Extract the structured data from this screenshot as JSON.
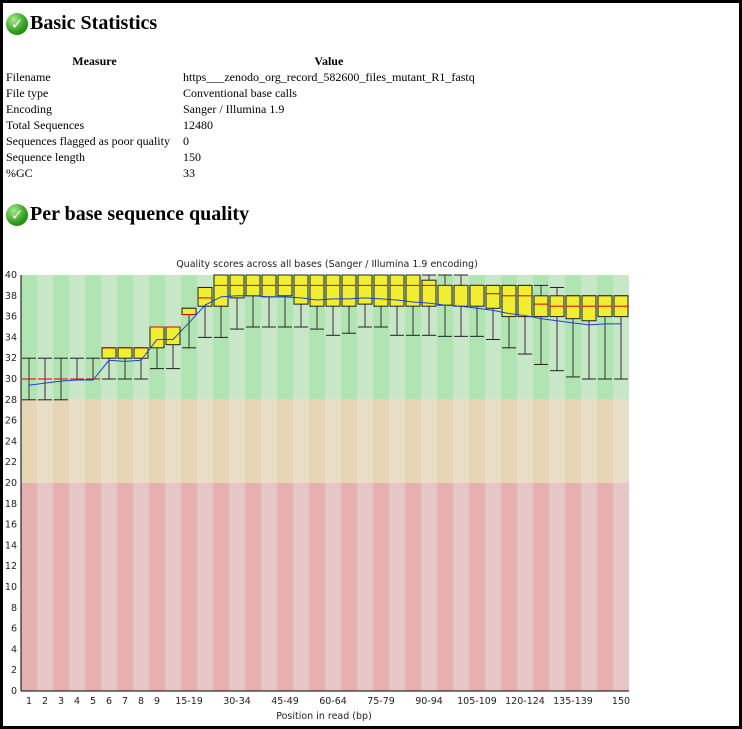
{
  "basic_statistics": {
    "title": "Basic Statistics",
    "headers": [
      "Measure",
      "Value"
    ],
    "rows": [
      [
        "Filename",
        "https___zenodo_org_record_582600_files_mutant_R1_fastq"
      ],
      [
        "File type",
        "Conventional base calls"
      ],
      [
        "Encoding",
        "Sanger / Illumina 1.9"
      ],
      [
        "Total Sequences",
        "12480"
      ],
      [
        "Sequences flagged as poor quality",
        "0"
      ],
      [
        "Sequence length",
        "150"
      ],
      [
        "%GC",
        "33"
      ]
    ]
  },
  "per_base_quality": {
    "title": "Per base sequence quality"
  },
  "icons": {
    "status": "check-circle-icon"
  },
  "colors": {
    "box": "#f0ee30",
    "median": "#e00000",
    "mean": "#2040d0",
    "good": [
      "#b0e4b0",
      "#c8e6c8"
    ],
    "warn": [
      "#e6d6b4",
      "#e8ddc6"
    ],
    "bad": [
      "#e6b0b0",
      "#e6c6c6"
    ]
  },
  "chart_data": {
    "type": "box",
    "title": "Quality scores across all bases (Sanger / Illumina 1.9 encoding)",
    "xlabel": "Position in read (bp)",
    "ylabel": "",
    "ylim": [
      0,
      40
    ],
    "yticks": [
      0,
      2,
      4,
      6,
      8,
      10,
      12,
      14,
      16,
      18,
      20,
      22,
      24,
      26,
      28,
      30,
      32,
      34,
      36,
      38,
      40
    ],
    "categories": [
      "1",
      "2",
      "3",
      "4",
      "5",
      "6",
      "7",
      "8",
      "9",
      "10-14",
      "15-19",
      "20-24",
      "25-29",
      "30-34",
      "35-39",
      "40-44",
      "45-49",
      "50-54",
      "55-59",
      "60-64",
      "65-69",
      "70-74",
      "75-79",
      "80-84",
      "85-89",
      "90-94",
      "95-99",
      "100-104",
      "105-109",
      "110-114",
      "115-119",
      "120-124",
      "125-129",
      "130-134",
      "135-139",
      "140-144",
      "145-149",
      "150"
    ],
    "xtick_labels": [
      "1",
      "2",
      "3",
      "4",
      "5",
      "6",
      "7",
      "8",
      "9",
      "15-19",
      "30-34",
      "45-49",
      "60-64",
      "75-79",
      "90-94",
      "105-109",
      "120-124",
      "135-139",
      "150"
    ],
    "median": [
      30,
      30,
      30,
      30,
      30,
      33,
      33,
      33,
      35,
      35,
      36.2,
      37.8,
      39,
      39,
      39,
      39,
      39,
      39,
      39,
      39,
      39,
      39,
      39,
      39,
      39,
      39,
      39,
      39,
      39,
      38.2,
      38,
      38,
      37.2,
      37,
      37,
      37,
      37,
      37
    ],
    "q1": [
      30,
      30,
      30,
      30,
      30,
      32,
      32,
      32,
      33,
      33.3,
      36.2,
      37,
      37,
      37.8,
      38,
      37.9,
      38,
      37.2,
      37,
      37,
      37,
      37.2,
      37,
      37,
      37,
      37,
      37.1,
      37,
      37,
      36.8,
      36,
      36,
      36,
      36,
      35.8,
      35.6,
      36,
      36
    ],
    "q3": [
      30,
      30,
      30,
      30,
      30,
      33,
      33,
      33,
      35,
      35,
      36.8,
      38.8,
      40,
      40,
      40,
      40,
      40,
      40,
      40,
      40,
      40,
      40,
      40,
      40,
      40,
      39.5,
      39,
      39,
      39,
      39,
      39,
      39,
      38,
      38,
      38,
      38,
      38,
      38
    ],
    "lower_whisker": [
      28,
      28,
      28,
      30,
      30,
      30,
      30,
      30,
      31,
      31,
      33,
      34,
      34,
      34.8,
      35,
      35,
      35,
      35,
      34.8,
      34.2,
      34.4,
      35,
      35,
      34.2,
      34.2,
      34.2,
      34.1,
      34.1,
      34.1,
      33.8,
      33,
      32.4,
      31.4,
      30.8,
      30.2,
      30,
      30,
      30
    ],
    "upper_whisker": [
      32,
      32,
      32,
      32,
      32,
      33,
      33,
      33,
      35,
      35,
      36.8,
      38.8,
      40,
      40,
      40,
      40,
      40,
      40,
      40,
      40,
      40,
      40,
      40,
      40,
      40,
      40,
      40,
      40,
      39,
      39,
      39,
      39,
      39,
      38.8,
      38,
      38,
      38,
      38
    ],
    "mean": [
      29.4,
      29.6,
      29.8,
      29.9,
      29.9,
      31.8,
      31.7,
      31.8,
      33.8,
      33.8,
      35.4,
      37.1,
      37.9,
      38,
      38,
      37.9,
      37.9,
      37.8,
      37.6,
      37.7,
      37.7,
      37.8,
      37.7,
      37.6,
      37.4,
      37.3,
      37.1,
      37,
      36.8,
      36.6,
      36.3,
      36.1,
      35.8,
      35.6,
      35.4,
      35.2,
      35.3,
      35.3
    ],
    "zones": [
      {
        "name": "good",
        "from": 28,
        "to": 40
      },
      {
        "name": "warn",
        "from": 20,
        "to": 28
      },
      {
        "name": "bad",
        "from": 0,
        "to": 20
      }
    ],
    "grid": false,
    "legend": "none"
  }
}
